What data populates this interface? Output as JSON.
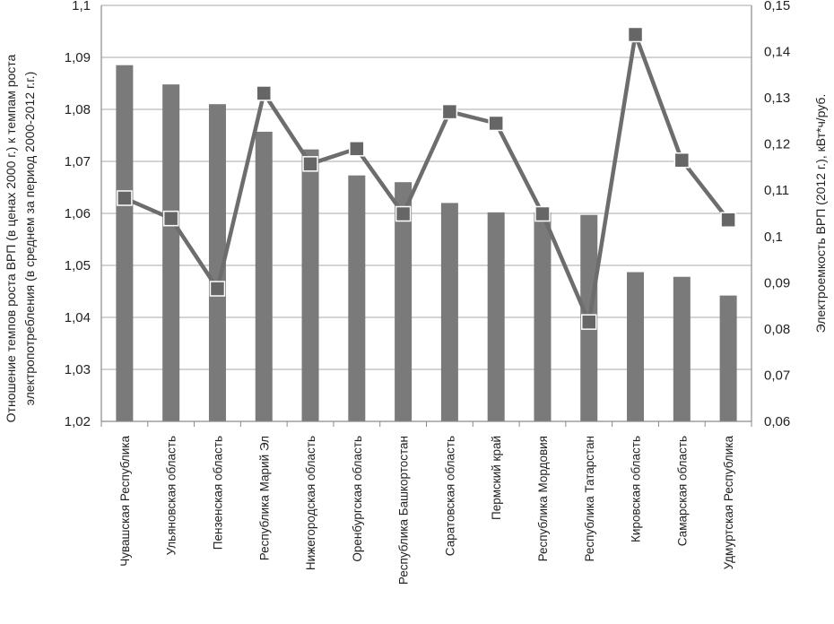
{
  "chart_data": {
    "type": "bar",
    "title": "",
    "categories": [
      "Чувашская Республика",
      "Ульяновская область",
      "Пензенская область",
      "Республика Марий Эл",
      "Нижегородская область",
      "Оренбургская область",
      "Республика Башкортостан",
      "Саратовская область",
      "Пермский край",
      "Республика Мордовия",
      "Республика Татарстан",
      "Кировская область",
      "Самарская область",
      "Удмуртская Республика"
    ],
    "series": [
      {
        "type": "bar",
        "axis": "left",
        "color": "#7a7a7a",
        "values": [
          1.0885,
          1.0848,
          1.081,
          1.0757,
          1.0723,
          1.0673,
          1.066,
          1.062,
          1.0602,
          1.0602,
          1.0597,
          1.0487,
          1.0478,
          1.0442
        ]
      },
      {
        "type": "line",
        "axis": "right",
        "color": "#6d6d6d",
        "marker": "square",
        "values": [
          0.1083,
          0.1039,
          0.0887,
          0.131,
          0.1157,
          0.119,
          0.1049,
          0.127,
          0.1245,
          0.1049,
          0.0815,
          0.1437,
          0.1165,
          0.1036
        ]
      }
    ],
    "y_left": {
      "label": "Отношение темпов роста ВРП (в ценах 2000 г.) к темпам роста электропотребления (в среднем за период 2000-2012 г.г.)",
      "label_lines": [
        "Отношение темпов роста ВРП (в ценах 2000 г.) к темпам роста",
        "электропотребления (в среднем за период 2000-2012 г.г.)"
      ],
      "ylim": [
        1.02,
        1.1
      ],
      "ticks": [
        "1,02",
        "1,03",
        "1,04",
        "1,05",
        "1,06",
        "1,07",
        "1,08",
        "1,09",
        "1,1"
      ]
    },
    "y_right": {
      "label": "Электроемкость ВРП (2012 г.), кВт*ч/руб.",
      "ylim": [
        0.06,
        0.15
      ],
      "ticks": [
        "0,06",
        "0,07",
        "0,08",
        "0,09",
        "0,1",
        "0,11",
        "0,12",
        "0,13",
        "0,14",
        "0,15"
      ]
    },
    "grid": true,
    "legend": "none"
  }
}
